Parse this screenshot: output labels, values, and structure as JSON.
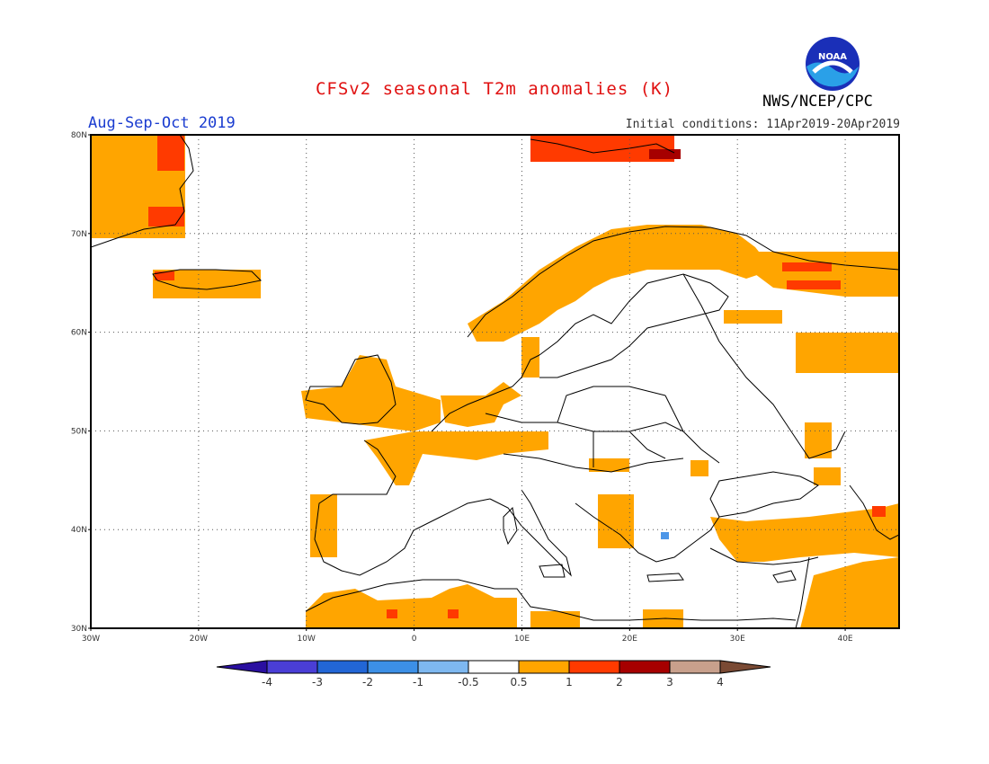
{
  "title": "CFSv2 seasonal T2m anomalies (K)",
  "period": "Aug-Sep-Oct 2019",
  "initial_conditions": "Initial conditions: 11Apr2019-20Apr2019",
  "agency": "NWS/NCEP/CPC",
  "logo_text": "NOAA",
  "colors": {
    "title": "#e01010",
    "period": "#1a3cd0",
    "anom_0_5_1": "#ffa500",
    "anom_1_2": "#ff3a00",
    "anom_2_3": "#a60000",
    "anom_neg": "#4c96e8"
  },
  "map": {
    "lon_range": [
      -30,
      45
    ],
    "lat_range": [
      30,
      80
    ],
    "lat_labels": [
      "80N",
      "70N",
      "60N",
      "50N",
      "40N",
      "30N"
    ],
    "lon_labels": [
      "30W",
      "20W",
      "10W",
      "0",
      "10E",
      "20E",
      "30E",
      "40E"
    ]
  },
  "colorbar": {
    "labels": [
      "-4",
      "-3",
      "-2",
      "-1",
      "-0.5",
      "0.5",
      "1",
      "2",
      "3",
      "4"
    ],
    "colors": [
      "#2a0fa0",
      "#4a3ed6",
      "#2266d6",
      "#3c8fe6",
      "#7eb8f0",
      "#ffffff",
      "#ffa500",
      "#ff3a00",
      "#a60000",
      "#c8a08c",
      "#7a4a34"
    ]
  }
}
